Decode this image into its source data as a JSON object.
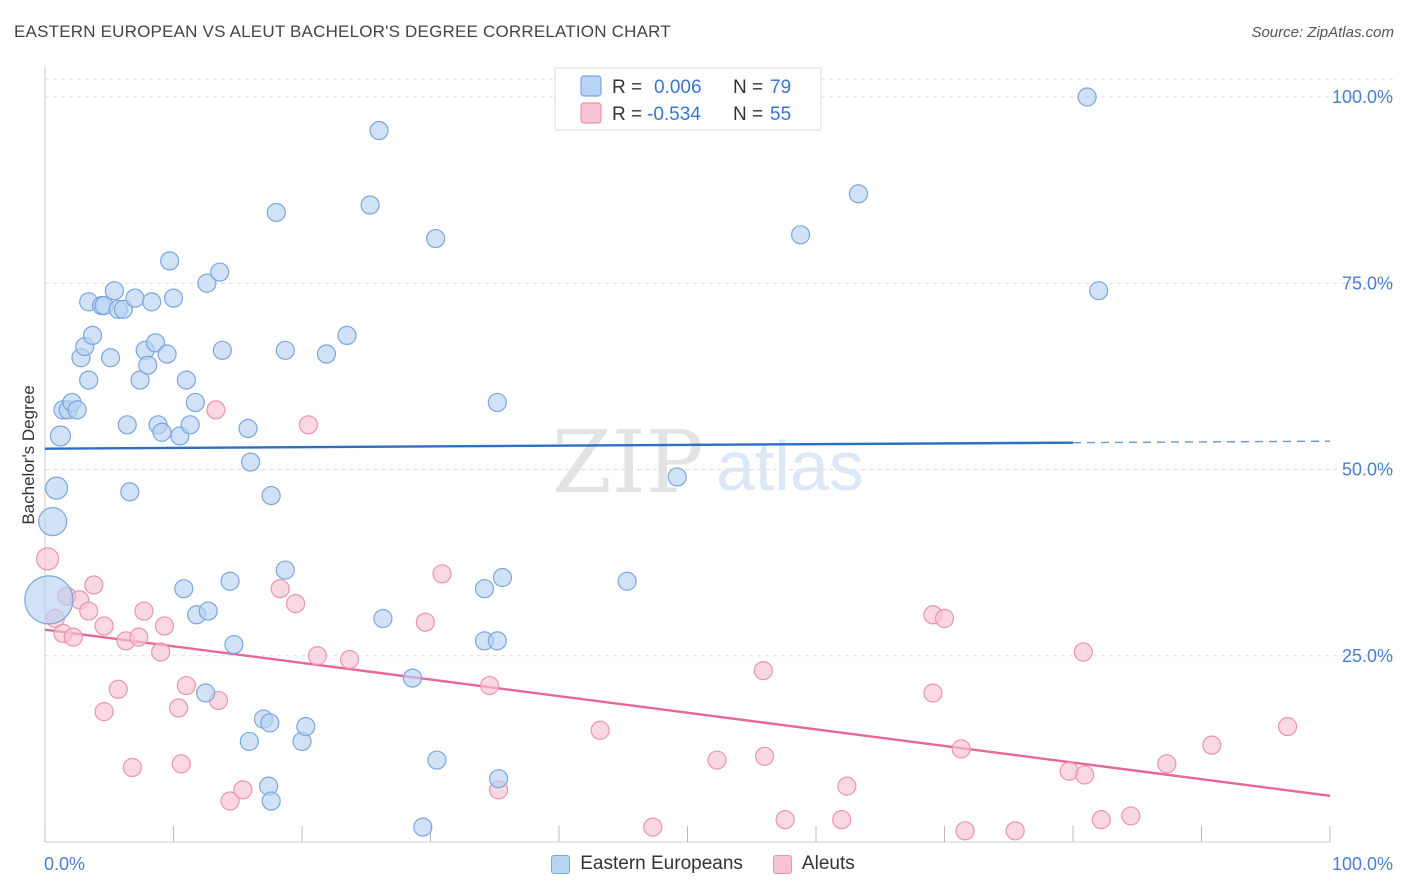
{
  "title": "EASTERN EUROPEAN VS ALEUT BACHELOR'S DEGREE CORRELATION CHART",
  "source": "Source: ZipAtlas.com",
  "watermark": {
    "zip": "ZIP",
    "atlas": "atlas"
  },
  "legend": {
    "r_label": "R =",
    "n_label": "N =",
    "rows": [
      {
        "r": "0.006",
        "n": "79"
      },
      {
        "r": "-0.534",
        "n": "55"
      }
    ]
  },
  "bottom_legend": [
    "Eastern Europeans",
    "Aleuts"
  ],
  "colors": {
    "blue_fill": "#b9d3f3",
    "blue_stroke": "#7aa6de",
    "blue_line": "#2c6fc4",
    "pink_fill": "#f7c3d3",
    "pink_stroke": "#ec93b1",
    "pink_line": "#e8679a",
    "tick_text": "#4a7fd0",
    "grid": "#dddddd"
  },
  "chart_data": {
    "type": "scatter",
    "title": "EASTERN EUROPEAN VS ALEUT BACHELOR'S DEGREE CORRELATION CHART",
    "xlabel": "",
    "ylabel": "Bachelor's Degree",
    "xlim": [
      0,
      100
    ],
    "ylim": [
      0,
      100
    ],
    "x_tick_labels": [
      "0.0%",
      "100.0%"
    ],
    "y_ticks": [
      25,
      50,
      75,
      100
    ],
    "y_tick_labels": [
      "25.0%",
      "50.0%",
      "75.0%",
      "100.0%"
    ],
    "grid": true,
    "series": [
      {
        "name": "Eastern Europeans",
        "r": 0.006,
        "n": 79,
        "trend": {
          "x0": 0,
          "y0": 52.8,
          "x1": 80,
          "y1": 53.6,
          "dashed_to_x": 100,
          "dashed_to_y": 53.8
        },
        "points": [
          [
            0.3,
            32.5,
            24
          ],
          [
            0.6,
            43,
            14
          ],
          [
            0.9,
            47.5,
            11
          ],
          [
            1.2,
            54.5,
            10
          ],
          [
            1.4,
            58,
            9
          ],
          [
            1.8,
            58,
            9
          ],
          [
            2.1,
            59,
            9
          ],
          [
            2.5,
            58,
            9
          ],
          [
            2.8,
            65,
            9
          ],
          [
            3.1,
            66.5,
            9
          ],
          [
            3.4,
            62,
            9
          ],
          [
            3.7,
            68,
            9
          ],
          [
            3.4,
            72.5,
            9
          ],
          [
            4.4,
            72,
            9
          ],
          [
            4.6,
            72,
            9
          ],
          [
            5.1,
            65,
            9
          ],
          [
            5.4,
            74,
            9
          ],
          [
            5.7,
            71.5,
            9
          ],
          [
            6.1,
            71.5,
            9
          ],
          [
            6.4,
            56,
            9
          ],
          [
            6.6,
            47,
            9
          ],
          [
            7.0,
            73,
            9
          ],
          [
            7.4,
            62,
            9
          ],
          [
            7.8,
            66,
            9
          ],
          [
            8.0,
            64,
            9
          ],
          [
            8.3,
            72.5,
            9
          ],
          [
            8.6,
            67,
            9
          ],
          [
            8.8,
            56,
            9
          ],
          [
            9.1,
            55,
            9
          ],
          [
            9.5,
            65.5,
            9
          ],
          [
            9.7,
            78,
            9
          ],
          [
            10.0,
            73,
            9
          ],
          [
            10.5,
            54.5,
            9
          ],
          [
            11.0,
            62,
            9
          ],
          [
            11.3,
            56,
            9
          ],
          [
            11.7,
            59,
            9
          ],
          [
            12.6,
            75,
            9
          ],
          [
            13.6,
            76.5,
            9
          ],
          [
            13.8,
            66,
            9
          ],
          [
            15.8,
            55.5,
            9
          ],
          [
            16.0,
            51,
            9
          ],
          [
            17.6,
            46.5,
            9
          ],
          [
            18.0,
            84.5,
            9
          ],
          [
            18.7,
            66,
            9
          ],
          [
            21.9,
            65.5,
            9
          ],
          [
            23.5,
            68,
            9
          ],
          [
            25.3,
            85.5,
            9
          ],
          [
            26.0,
            95.5,
            9
          ],
          [
            30.4,
            81,
            9
          ],
          [
            35.2,
            59,
            9
          ],
          [
            49.2,
            49,
            9
          ],
          [
            58.8,
            81.5,
            9
          ],
          [
            63.3,
            87,
            9
          ],
          [
            81.1,
            100,
            9
          ],
          [
            82.0,
            74,
            9
          ],
          [
            10.8,
            34,
            9
          ],
          [
            11.8,
            30.5,
            9
          ],
          [
            12.7,
            31,
            9
          ],
          [
            14.4,
            35,
            9
          ],
          [
            14.7,
            26.5,
            9
          ],
          [
            18.7,
            36.5,
            9
          ],
          [
            26.3,
            30,
            9
          ],
          [
            28.6,
            22,
            9
          ],
          [
            34.2,
            34,
            9
          ],
          [
            34.2,
            27,
            9
          ],
          [
            35.2,
            27,
            9
          ],
          [
            35.6,
            35.5,
            9
          ],
          [
            45.3,
            35,
            9
          ],
          [
            12.5,
            20,
            9
          ],
          [
            15.9,
            13.5,
            9
          ],
          [
            17.0,
            16.5,
            9
          ],
          [
            17.5,
            16,
            9
          ],
          [
            20.0,
            13.5,
            9
          ],
          [
            20.3,
            15.5,
            9
          ],
          [
            17.4,
            7.5,
            9
          ],
          [
            17.6,
            5.5,
            9
          ],
          [
            30.5,
            11,
            9
          ],
          [
            35.3,
            8.5,
            9
          ],
          [
            29.4,
            2,
            9
          ]
        ]
      },
      {
        "name": "Aleuts",
        "r": -0.534,
        "n": 55,
        "trend": {
          "x0": 0,
          "y0": 28.5,
          "x1": 100,
          "y1": 6.2
        },
        "points": [
          [
            0.2,
            38,
            11
          ],
          [
            0.8,
            30,
            9
          ],
          [
            1.4,
            28,
            9
          ],
          [
            1.7,
            33,
            9
          ],
          [
            2.2,
            27.5,
            9
          ],
          [
            2.7,
            32.5,
            9
          ],
          [
            3.4,
            31,
            9
          ],
          [
            3.8,
            34.5,
            9
          ],
          [
            4.6,
            29,
            9
          ],
          [
            4.6,
            17.5,
            9
          ],
          [
            5.7,
            20.5,
            9
          ],
          [
            6.3,
            27,
            9
          ],
          [
            6.8,
            10,
            9
          ],
          [
            7.3,
            27.5,
            9
          ],
          [
            7.7,
            31,
            9
          ],
          [
            9.0,
            25.5,
            9
          ],
          [
            9.3,
            29,
            9
          ],
          [
            10.4,
            18,
            9
          ],
          [
            10.6,
            10.5,
            9
          ],
          [
            11.0,
            21,
            9
          ],
          [
            13.5,
            19,
            9
          ],
          [
            14.4,
            5.5,
            9
          ],
          [
            15.4,
            7,
            9
          ],
          [
            13.3,
            58,
            9
          ],
          [
            18.3,
            34,
            9
          ],
          [
            19.5,
            32,
            9
          ],
          [
            20.5,
            56,
            9
          ],
          [
            21.2,
            25,
            9
          ],
          [
            23.7,
            24.5,
            9
          ],
          [
            29.6,
            29.5,
            9
          ],
          [
            30.9,
            36,
            9
          ],
          [
            34.6,
            21,
            9
          ],
          [
            35.3,
            7,
            9
          ],
          [
            43.2,
            15,
            9
          ],
          [
            47.3,
            2,
            9
          ],
          [
            52.3,
            11,
            9
          ],
          [
            55.9,
            23,
            9
          ],
          [
            56.0,
            11.5,
            9
          ],
          [
            57.6,
            3,
            9
          ],
          [
            62.0,
            3,
            9
          ],
          [
            62.4,
            7.5,
            9
          ],
          [
            69.1,
            20,
            9
          ],
          [
            69.1,
            30.5,
            9
          ],
          [
            70.0,
            30,
            9
          ],
          [
            71.3,
            12.5,
            9
          ],
          [
            71.6,
            1.5,
            9
          ],
          [
            75.5,
            1.5,
            9
          ],
          [
            79.7,
            9.5,
            9
          ],
          [
            80.9,
            9,
            9
          ],
          [
            80.8,
            25.5,
            9
          ],
          [
            82.2,
            3,
            9
          ],
          [
            84.5,
            3.5,
            9
          ],
          [
            87.3,
            10.5,
            9
          ],
          [
            90.8,
            13,
            9
          ],
          [
            96.7,
            15.5,
            9
          ]
        ]
      }
    ]
  }
}
